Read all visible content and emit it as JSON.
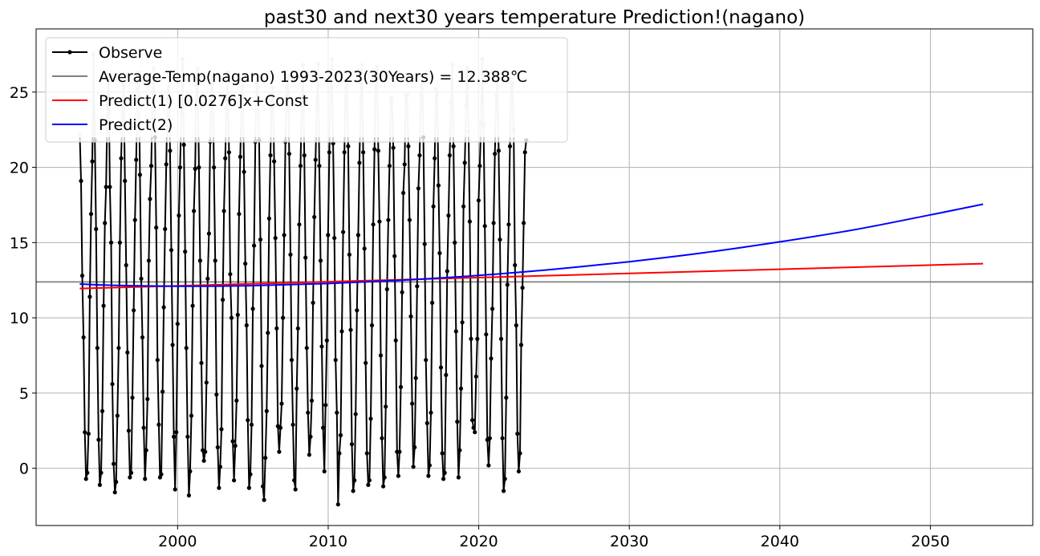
{
  "chart_data": {
    "type": "line",
    "title": "past30 and next30 years temperature Prediction!(nagano)",
    "xlabel": "",
    "ylabel": "",
    "xlim": [
      1990.6,
      2056.8
    ],
    "ylim": [
      -3.8,
      29.2
    ],
    "x_ticks": [
      2000,
      2010,
      2020,
      2030,
      2040,
      2050
    ],
    "y_ticks": [
      0,
      5,
      10,
      15,
      20,
      25
    ],
    "grid": true,
    "legend_position": "upper-left",
    "series": [
      {
        "name": "Observe",
        "color": "#000000",
        "marker": "dot",
        "x_start": 1993.5,
        "x_step": 0.0833,
        "clip_above": 22.0,
        "clipped_color": "#cccccc",
        "values": [
          22.2,
          19.1,
          12.8,
          8.7,
          2.4,
          -0.7,
          -0.3,
          2.3,
          11.4,
          16.9,
          20.4,
          27.5,
          21.8,
          15.9,
          8.0,
          1.9,
          -1.1,
          -0.3,
          3.8,
          10.8,
          16.3,
          18.7,
          24.1,
          26.0,
          18.7,
          15.0,
          5.6,
          0.3,
          -1.6,
          -0.9,
          3.5,
          8.0,
          15.0,
          20.6,
          24.1,
          25.5,
          19.1,
          13.5,
          7.7,
          2.5,
          -0.6,
          -0.3,
          4.7,
          10.5,
          16.5,
          20.5,
          25.2,
          26.3,
          19.5,
          12.6,
          8.7,
          2.7,
          -0.7,
          1.2,
          4.6,
          13.8,
          17.9,
          20.1,
          25.0,
          26.6,
          22.0,
          16.0,
          7.2,
          2.9,
          -0.6,
          -0.4,
          5.1,
          10.7,
          15.9,
          20.2,
          24.6,
          26.2,
          21.1,
          14.5,
          8.2,
          2.1,
          -1.4,
          2.4,
          9.6,
          16.8,
          20.0,
          23.6,
          27.2,
          21.5,
          14.4,
          8.0,
          2.1,
          -1.8,
          -0.2,
          3.5,
          10.8,
          17.1,
          19.9,
          25.5,
          26.6,
          20.0,
          13.8,
          7.0,
          1.2,
          0.5,
          1.1,
          5.7,
          12.6,
          15.6,
          21.7,
          25.1,
          26.0,
          20.0,
          13.8,
          4.9,
          1.4,
          -1.3,
          0.1,
          2.6,
          11.2,
          17.1,
          20.6,
          24.4,
          26.3,
          21.0,
          12.9,
          10.0,
          1.8,
          -0.8,
          1.5,
          4.5,
          10.2,
          16.9,
          20.7,
          24.6,
          25.4,
          19.7,
          13.6,
          9.5,
          3.2,
          -1.3,
          -0.4,
          2.9,
          10.6,
          14.8,
          21.7,
          25.6,
          25.3,
          21.8,
          15.2,
          6.8,
          -1.2,
          -2.1,
          0.7,
          3.8,
          9.0,
          16.6,
          20.8,
          24.4,
          25.3,
          20.4,
          15.3,
          9.3,
          2.8,
          1.1,
          2.7,
          4.3,
          10.0,
          15.5,
          21.7,
          25.3,
          26.0,
          20.9,
          14.2,
          7.2,
          2.9,
          -0.8,
          -1.4,
          5.3,
          9.3,
          16.2,
          20.1,
          24.4,
          26.8,
          20.8,
          14.0,
          8.0,
          3.7,
          0.9,
          2.1,
          4.5,
          11.0,
          16.7,
          20.5,
          24.2,
          26.9,
          20.1,
          13.8,
          8.1,
          2.7,
          -0.2,
          4.2,
          8.5,
          15.5,
          21.0,
          25.0,
          27.2,
          21.6,
          15.3,
          7.2,
          3.7,
          -2.4,
          1.0,
          2.2,
          9.1,
          15.7,
          21.0,
          25.8,
          26.0,
          21.4,
          14.2,
          9.2,
          1.6,
          -1.5,
          -0.8,
          3.6,
          10.5,
          15.5,
          20.3,
          24.6,
          26.8,
          21.0,
          14.6,
          7.0,
          1.0,
          -1.1,
          -0.8,
          3.3,
          9.5,
          16.2,
          21.2,
          25.8,
          26.7,
          21.1,
          16.4,
          7.5,
          2.0,
          -1.2,
          -0.6,
          4.1,
          11.9,
          16.5,
          20.1,
          24.6,
          24.6,
          21.3,
          14.1,
          8.5,
          1.1,
          -0.5,
          1.1,
          5.4,
          11.7,
          18.3,
          20.2,
          24.8,
          24.8,
          21.4,
          16.5,
          10.1,
          4.3,
          0.1,
          1.4,
          6.0,
          12.1,
          18.6,
          20.8,
          24.8,
          25.7,
          22.0,
          14.9,
          7.2,
          3.0,
          -0.5,
          0.2,
          3.7,
          11.0,
          17.4,
          20.6,
          25.2,
          25.0,
          18.8,
          14.3,
          6.7,
          1.0,
          -0.7,
          -0.3,
          6.2,
          13.1,
          16.8,
          20.8,
          24.3,
          26.8,
          21.4,
          15.0,
          9.1,
          3.1,
          -0.6,
          1.2,
          5.3,
          9.7,
          17.4,
          20.3,
          24.1,
          26.6,
          22.4,
          16.4,
          8.6,
          3.2,
          2.7,
          2.4,
          6.1,
          8.6,
          17.8,
          20.1,
          23.0,
          27.2,
          22.8,
          16.1,
          8.9,
          1.9,
          0.2,
          2.0,
          7.3,
          10.6,
          16.3,
          20.9,
          24.8,
          26.1,
          21.1,
          15.2,
          8.6,
          2.0,
          -1.5,
          -0.7,
          4.7,
          12.2,
          16.2,
          21.4,
          25.6,
          25.6,
          22.5,
          13.5,
          9.5,
          2.3,
          -0.2,
          1.0,
          8.2,
          12.0,
          16.3,
          21.0,
          21.8
        ]
      },
      {
        "name": "Average-Temp(nagano) 1993-2023(30Years) = 12.388℃",
        "color": "#808080",
        "value": 12.388
      },
      {
        "name": "Predict(1) [0.0276]x+Const",
        "color": "#ff0000",
        "x": [
          1993.5,
          2053.5
        ],
        "values": [
          11.95,
          13.6
        ]
      },
      {
        "name": "Predict(2)",
        "color": "#0000ff",
        "x": [
          1993.5,
          1996,
          2000,
          2005,
          2010,
          2015,
          2020,
          2025,
          2030,
          2035,
          2040,
          2045,
          2050,
          2053.5
        ],
        "values": [
          12.25,
          12.15,
          12.1,
          12.14,
          12.28,
          12.51,
          12.82,
          13.23,
          13.73,
          14.33,
          15.05,
          15.86,
          16.84,
          17.55
        ]
      }
    ]
  }
}
